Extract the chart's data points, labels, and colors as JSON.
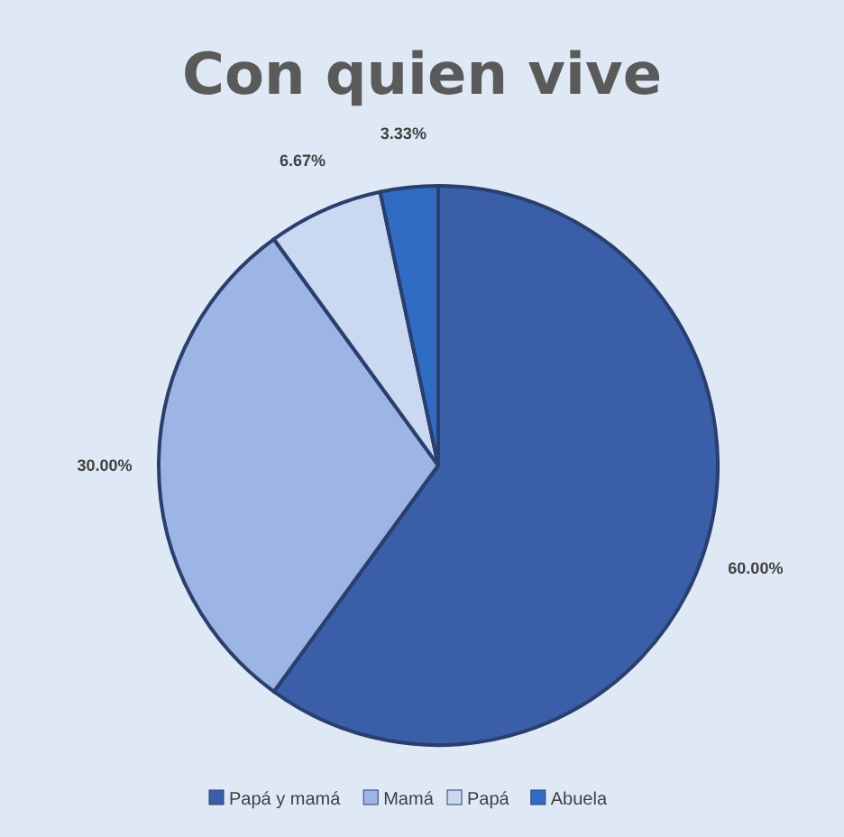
{
  "chart_data": {
    "type": "pie",
    "title": "Con quien vive",
    "categories": [
      "Papá y mamá",
      "Mamá",
      "Papá",
      "Abuela"
    ],
    "values": [
      60,
      30,
      6.67,
      3.33
    ],
    "value_labels": [
      "60.00%",
      "30.00%",
      "6.67%",
      "3.33%"
    ],
    "colors": [
      "#3a5ea8",
      "#9cb5e4",
      "#cbd8f1",
      "#2f6cc2"
    ],
    "legend": "bottom"
  }
}
